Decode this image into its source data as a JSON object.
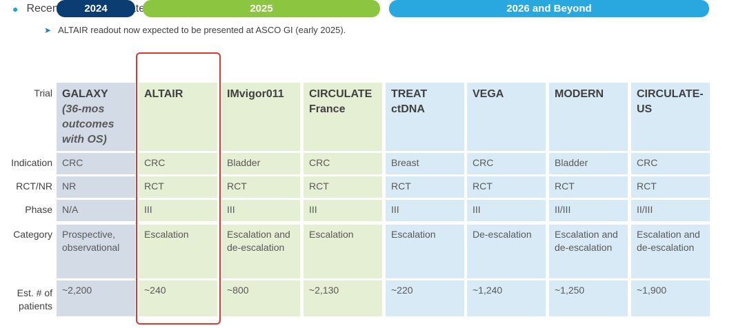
{
  "bullet": "Recent business updates include:",
  "subbullet": "ALTAIR readout now expected to be presented at ASCO GI (early 2025).",
  "periods": [
    {
      "label": "2024",
      "color": "#0b3d73"
    },
    {
      "label": "2025",
      "color": "#8cc53f"
    },
    {
      "label": "2026 and Beyond",
      "color": "#29a8e0"
    }
  ],
  "row_labels": {
    "trial": "Trial",
    "indication": "Indication",
    "rct": "RCT/NR",
    "phase": "Phase",
    "category": "Category",
    "patients_line1": "Est. # of",
    "patients_line2": "patients"
  },
  "trials": [
    {
      "name": "GALAXY",
      "sub": "(36-mos outcomes with OS)",
      "indication": "CRC",
      "rct": "NR",
      "phase": "N/A",
      "category": "Prospective, observational",
      "patients": "~2,200"
    },
    {
      "name": "ALTAIR",
      "sub": "",
      "indication": "CRC",
      "rct": "RCT",
      "phase": "III",
      "category": "Escalation",
      "patients": "~240"
    },
    {
      "name": "IMvigor011",
      "sub": "",
      "indication": "Bladder",
      "rct": "RCT",
      "phase": "III",
      "category": "Escalation and de-escalation",
      "patients": "~800"
    },
    {
      "name": "CIRCULATE France",
      "sub": "",
      "indication": "CRC",
      "rct": "RCT",
      "phase": "III",
      "category": "Escalation",
      "patients": "~2,130"
    },
    {
      "name": "TREAT ctDNA",
      "sub": "",
      "indication": "Breast",
      "rct": "RCT",
      "phase": "III",
      "category": "Escalation",
      "patients": "~220"
    },
    {
      "name": "VEGA",
      "sub": "",
      "indication": "CRC",
      "rct": "RCT",
      "phase": "III",
      "category": "De-escalation",
      "patients": "~1,240"
    },
    {
      "name": "MODERN",
      "sub": "",
      "indication": "Bladder",
      "rct": "RCT",
      "phase": "II/III",
      "category": "Escalation and de-escalation",
      "patients": "~1,250"
    },
    {
      "name": "CIRCULATE-US",
      "sub": "",
      "indication": "CRC",
      "rct": "RCT",
      "phase": "II/III",
      "category": "Escalation and de-escalation",
      "patients": "~1,900"
    }
  ],
  "colors": {
    "col_2024": "#d3dbe6",
    "col_2025": "#e4efd3",
    "col_2026": "#d7eaf6",
    "highlight": "#e3342f"
  }
}
